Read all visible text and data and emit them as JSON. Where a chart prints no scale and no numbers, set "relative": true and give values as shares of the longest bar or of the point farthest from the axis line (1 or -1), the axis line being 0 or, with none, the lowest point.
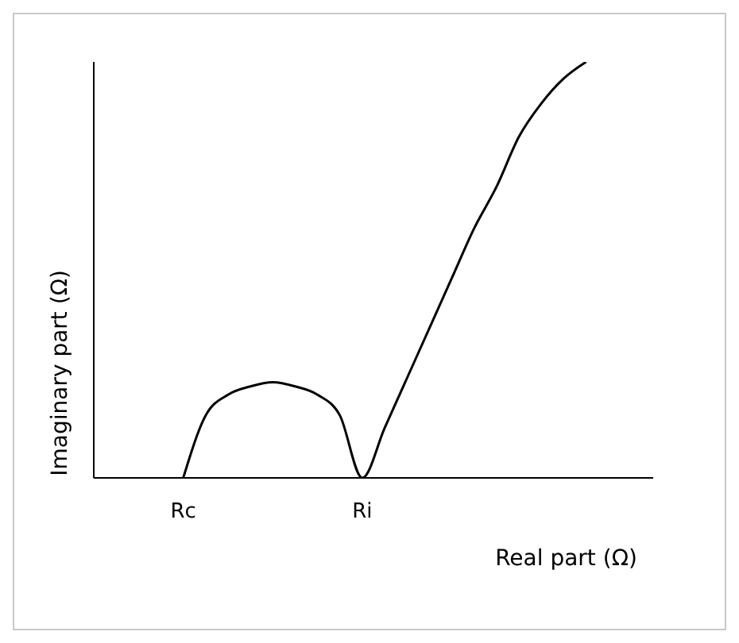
{
  "chart_data": {
    "type": "line",
    "xlabel": "Real part (Ω)",
    "ylabel": "Imaginary part (Ω)",
    "relative": true,
    "categories": [
      null,
      null,
      null,
      null,
      "Rc",
      null,
      null,
      null,
      null,
      null,
      null,
      null,
      "Ri",
      null,
      null,
      null,
      null,
      null,
      null,
      null,
      null,
      null,
      null,
      null,
      null,
      null
    ],
    "series": [
      {
        "color": "#000000",
        "values": [
          null,
          null,
          null,
          null,
          0,
          0.15,
          0.2,
          0.22,
          0.23,
          0.22,
          0.2,
          0.15,
          0,
          0.12,
          0.24,
          0.36,
          0.48,
          0.6,
          0.7,
          0.82,
          0.9,
          0.96,
          1,
          null,
          null,
          null
        ]
      }
    ]
  }
}
